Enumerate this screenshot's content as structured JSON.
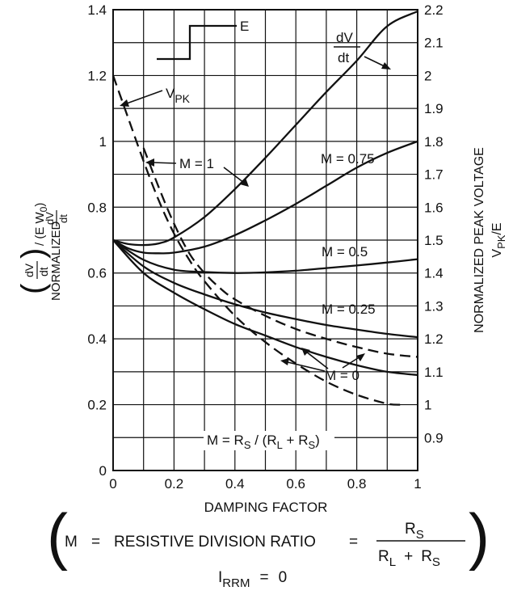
{
  "chart_data": {
    "type": "line",
    "xlabel": "DAMPING FACTOR",
    "xlim": [
      0,
      1
    ],
    "x_ticks": [
      "0",
      "0.2",
      "0.4",
      "0.6",
      "0.8",
      "1"
    ],
    "ylim_left": [
      0,
      1.4
    ],
    "y_left_ticks": [
      "0",
      "0.2",
      "0.4",
      "0.6",
      "0.8",
      "1",
      "1.2",
      "1.4"
    ],
    "ylabel_left": {
      "frac_num": "dV",
      "frac_den": "dt",
      "suffix": "/ (E W",
      "suffix_sub": "0",
      "suffix_end": ")",
      "line2": "NORMALIZED",
      "line2_num": "dV",
      "line2_den": "dt"
    },
    "ylim_right": [
      0.8,
      2.2
    ],
    "y_right_ticks": [
      "0.9",
      "1",
      "1.1",
      "1.2",
      "1.3",
      "1.4",
      "1.5",
      "1.6",
      "1.7",
      "1.8",
      "1.9",
      "2",
      "2.1",
      "2.2"
    ],
    "ylabel_right": {
      "line1": "NORMALIZED PEAK VOLTAGE",
      "line2_main": "V",
      "line2_sub": "PK",
      "line2_end": "/E"
    },
    "series": [
      {
        "name": "M = 1",
        "axis": "left",
        "style": "solid",
        "x": [
          0,
          0.05,
          0.1,
          0.15,
          0.2,
          0.3,
          0.4,
          0.5,
          0.6,
          0.7,
          0.8,
          0.9,
          1.0
        ],
        "y": [
          0.7,
          0.688,
          0.685,
          0.69,
          0.708,
          0.77,
          0.855,
          0.95,
          1.05,
          1.15,
          1.245,
          1.35,
          1.395
        ]
      },
      {
        "name": "M = 0.75",
        "axis": "left",
        "style": "solid",
        "x": [
          0,
          0.05,
          0.1,
          0.15,
          0.2,
          0.3,
          0.4,
          0.5,
          0.6,
          0.7,
          0.8,
          0.9,
          1.0
        ],
        "y": [
          0.7,
          0.675,
          0.662,
          0.66,
          0.662,
          0.68,
          0.715,
          0.76,
          0.81,
          0.865,
          0.92,
          0.965,
          1.0
        ]
      },
      {
        "name": "M = 0.5",
        "axis": "left",
        "style": "solid",
        "x": [
          0,
          0.1,
          0.2,
          0.3,
          0.4,
          0.5,
          0.6,
          0.7,
          0.8,
          0.9,
          1.0
        ],
        "y": [
          0.7,
          0.64,
          0.61,
          0.603,
          0.6,
          0.602,
          0.607,
          0.615,
          0.623,
          0.632,
          0.642
        ]
      },
      {
        "name": "M = 0.25",
        "axis": "left",
        "style": "solid",
        "x": [
          0,
          0.1,
          0.2,
          0.3,
          0.4,
          0.5,
          0.6,
          0.7,
          0.8,
          0.9,
          1.0
        ],
        "y": [
          0.7,
          0.62,
          0.57,
          0.535,
          0.505,
          0.48,
          0.46,
          0.442,
          0.428,
          0.415,
          0.405
        ]
      },
      {
        "name": "M = 0",
        "axis": "left",
        "style": "solid",
        "x": [
          0,
          0.1,
          0.2,
          0.3,
          0.4,
          0.5,
          0.6,
          0.7,
          0.8,
          0.9,
          1.0
        ],
        "y": [
          0.7,
          0.6,
          0.54,
          0.49,
          0.445,
          0.41,
          0.375,
          0.345,
          0.32,
          0.3,
          0.29
        ]
      },
      {
        "name": "V",
        "axis": "right",
        "style": "dashed",
        "x": [
          0,
          0.05,
          0.1,
          0.15,
          0.2,
          0.25,
          0.3,
          0.4,
          0.5,
          0.6,
          0.7,
          0.8,
          0.9,
          0.95
        ],
        "y": [
          2.0,
          1.87,
          1.74,
          1.62,
          1.52,
          1.44,
          1.375,
          1.27,
          1.19,
          1.125,
          1.07,
          1.03,
          1.003,
          1.0
        ]
      },
      {
        "name": "",
        "axis": "left",
        "style": "dashed",
        "x": [
          0.1,
          0.15,
          0.2,
          0.25,
          0.3,
          0.35,
          0.4,
          0.5,
          0.6,
          0.7,
          0.8,
          0.9,
          1.0
        ],
        "y": [
          0.98,
          0.86,
          0.75,
          0.66,
          0.6,
          0.555,
          0.52,
          0.47,
          0.43,
          0.4,
          0.375,
          0.355,
          0.345
        ]
      }
    ],
    "annotations": {
      "step_label": "E",
      "dvdt_num": "dV",
      "dvdt_den": "dt",
      "vpk_main": "V",
      "vpk_sub": "PK",
      "m1": "M = 1",
      "m075": "M = 0.75",
      "m05": "M = 0.5",
      "m025": "M = 0.25",
      "m0": "M = 0",
      "mdef_a": "M = R",
      "mdef_sub1": "S",
      "mdef_b": " / (R",
      "mdef_sub2": "L",
      "mdef_c": " + R",
      "mdef_sub3": "S",
      "mdef_d": ")"
    },
    "grid": true
  },
  "footer": {
    "paren_left": "(",
    "paren_right": ")",
    "m_text": "M",
    "equals1": "=",
    "resistive": "RESISTIVE DIVISION RATIO",
    "equals2": "=",
    "num_main": "R",
    "num_sub": "S",
    "den_main1": "R",
    "den_sub1": "L",
    "den_plus": "+",
    "den_main2": "R",
    "den_sub2": "S",
    "irrm_main": "I",
    "irrm_sub": "RRM",
    "irrm_eq": "=",
    "irrm_val": "0"
  }
}
